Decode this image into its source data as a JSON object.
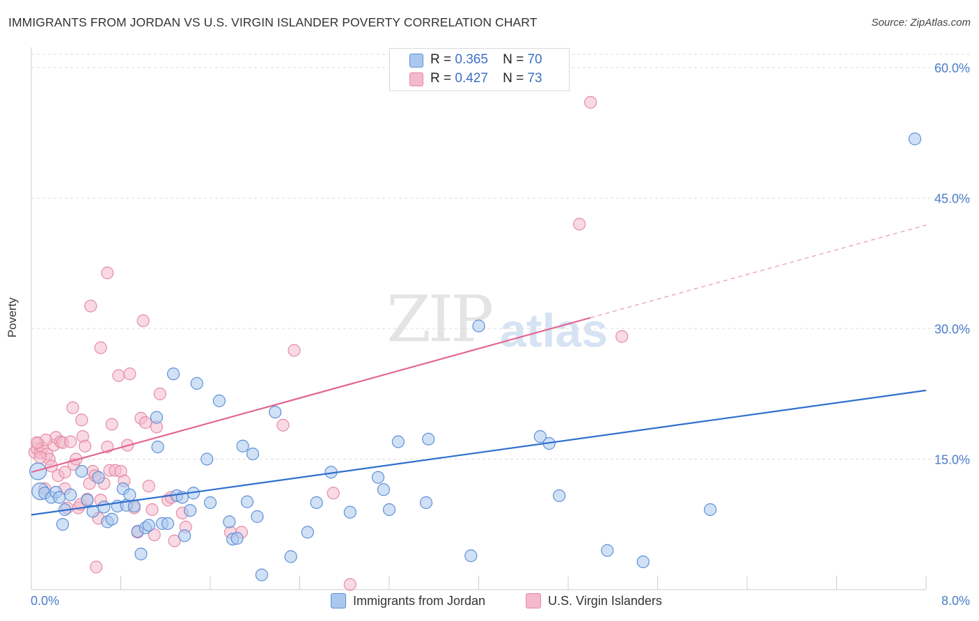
{
  "title": "IMMIGRANTS FROM JORDAN VS U.S. VIRGIN ISLANDER POVERTY CORRELATION CHART",
  "source": "Source: ZipAtlas.com",
  "watermark": {
    "zip": "ZIP",
    "atlas": "atlas"
  },
  "legend": {
    "r_label": "R =",
    "n_label": "N =",
    "series": [
      {
        "r": "0.365",
        "n": "70"
      },
      {
        "r": "0.427",
        "n": "73"
      }
    ]
  },
  "colors": {
    "jordan_fill": "#aac8ee",
    "jordan_stroke": "#5d8fd6",
    "jordan_line": "#2e6fce",
    "vi_fill": "#f4b9cb",
    "vi_stroke": "#e58aa9",
    "vi_line": "#e2668f",
    "grid": "#dddddd",
    "axis": "#cccccc",
    "tick_text": "#4a7cc9"
  },
  "chart_data": {
    "type": "scatter",
    "title": "IMMIGRANTS FROM JORDAN VS U.S. VIRGIN ISLANDER POVERTY CORRELATION CHART",
    "xlabel": "",
    "ylabel": "Poverty",
    "xlim": [
      0,
      8
    ],
    "ylim": [
      0,
      60
    ],
    "x_tick_labels": [
      "0.0%",
      "8.0%"
    ],
    "y_ticks": [
      15,
      30,
      45,
      60
    ],
    "y_tick_labels": [
      "15.0%",
      "30.0%",
      "45.0%",
      "60.0%"
    ],
    "grid": true,
    "legend_position": "top-center",
    "series": [
      {
        "name": "Immigrants from Jordan",
        "r": 0.365,
        "n": 70,
        "trend": {
          "x": [
            0,
            8
          ],
          "y": [
            8.6,
            22.9
          ],
          "dashed_from": null
        },
        "points": [
          {
            "x": 0.06,
            "y": 13.6,
            "big": true
          },
          {
            "x": 0.08,
            "y": 11.3,
            "big": true
          },
          {
            "x": 0.12,
            "y": 11.1
          },
          {
            "x": 0.18,
            "y": 10.6
          },
          {
            "x": 0.22,
            "y": 11.2
          },
          {
            "x": 0.25,
            "y": 10.6
          },
          {
            "x": 0.28,
            "y": 7.5
          },
          {
            "x": 0.3,
            "y": 9.2
          },
          {
            "x": 0.35,
            "y": 10.9
          },
          {
            "x": 0.45,
            "y": 13.6
          },
          {
            "x": 0.5,
            "y": 10.3
          },
          {
            "x": 0.55,
            "y": 9.0
          },
          {
            "x": 0.6,
            "y": 12.9
          },
          {
            "x": 0.65,
            "y": 9.5
          },
          {
            "x": 0.68,
            "y": 7.8
          },
          {
            "x": 0.72,
            "y": 8.1
          },
          {
            "x": 0.77,
            "y": 9.6
          },
          {
            "x": 0.82,
            "y": 11.6
          },
          {
            "x": 0.85,
            "y": 9.7
          },
          {
            "x": 0.88,
            "y": 10.9
          },
          {
            "x": 0.92,
            "y": 9.6
          },
          {
            "x": 0.95,
            "y": 6.7
          },
          {
            "x": 0.98,
            "y": 4.1
          },
          {
            "x": 1.02,
            "y": 7.1
          },
          {
            "x": 1.05,
            "y": 7.4
          },
          {
            "x": 1.12,
            "y": 19.8
          },
          {
            "x": 1.13,
            "y": 16.4
          },
          {
            "x": 1.17,
            "y": 7.6
          },
          {
            "x": 1.22,
            "y": 7.6
          },
          {
            "x": 1.27,
            "y": 24.8
          },
          {
            "x": 1.3,
            "y": 10.8
          },
          {
            "x": 1.35,
            "y": 10.6
          },
          {
            "x": 1.37,
            "y": 6.2
          },
          {
            "x": 1.42,
            "y": 9.1
          },
          {
            "x": 1.45,
            "y": 11.1
          },
          {
            "x": 1.48,
            "y": 23.7
          },
          {
            "x": 1.57,
            "y": 15.0
          },
          {
            "x": 1.6,
            "y": 10.0
          },
          {
            "x": 1.68,
            "y": 21.7
          },
          {
            "x": 1.77,
            "y": 7.8
          },
          {
            "x": 1.8,
            "y": 5.8
          },
          {
            "x": 1.84,
            "y": 5.9
          },
          {
            "x": 1.89,
            "y": 16.5
          },
          {
            "x": 1.93,
            "y": 10.1
          },
          {
            "x": 1.98,
            "y": 15.6
          },
          {
            "x": 2.02,
            "y": 8.4
          },
          {
            "x": 2.06,
            "y": 1.7
          },
          {
            "x": 2.18,
            "y": 20.4
          },
          {
            "x": 2.32,
            "y": 3.8
          },
          {
            "x": 2.47,
            "y": 6.6
          },
          {
            "x": 2.55,
            "y": 10.0
          },
          {
            "x": 2.68,
            "y": 13.5
          },
          {
            "x": 2.85,
            "y": 8.9
          },
          {
            "x": 3.1,
            "y": 12.9
          },
          {
            "x": 3.15,
            "y": 11.5
          },
          {
            "x": 3.2,
            "y": 9.2
          },
          {
            "x": 3.28,
            "y": 17.0
          },
          {
            "x": 3.53,
            "y": 10.0
          },
          {
            "x": 3.55,
            "y": 17.3
          },
          {
            "x": 3.93,
            "y": 3.9
          },
          {
            "x": 4.0,
            "y": 30.3
          },
          {
            "x": 4.55,
            "y": 17.6
          },
          {
            "x": 4.63,
            "y": 16.8
          },
          {
            "x": 4.72,
            "y": 10.8
          },
          {
            "x": 5.15,
            "y": 4.5
          },
          {
            "x": 5.47,
            "y": 3.2
          },
          {
            "x": 6.07,
            "y": 9.2
          },
          {
            "x": 7.9,
            "y": 51.8
          }
        ]
      },
      {
        "name": "U.S. Virgin Islanders",
        "r": 0.427,
        "n": 73,
        "trend": {
          "x": [
            0,
            8
          ],
          "y": [
            13.5,
            41.9
          ],
          "dashed_from": 5.0
        },
        "points": [
          {
            "x": 0.03,
            "y": 15.8
          },
          {
            "x": 0.05,
            "y": 16.2
          },
          {
            "x": 0.06,
            "y": 16.8
          },
          {
            "x": 0.08,
            "y": 15.7
          },
          {
            "x": 0.1,
            "y": 16.3
          },
          {
            "x": 0.12,
            "y": 11.6
          },
          {
            "x": 0.14,
            "y": 15.6
          },
          {
            "x": 0.16,
            "y": 15.0
          },
          {
            "x": 0.18,
            "y": 14.2
          },
          {
            "x": 0.2,
            "y": 16.6
          },
          {
            "x": 0.22,
            "y": 17.5
          },
          {
            "x": 0.24,
            "y": 13.1
          },
          {
            "x": 0.26,
            "y": 17.0
          },
          {
            "x": 0.28,
            "y": 16.9
          },
          {
            "x": 0.3,
            "y": 11.6
          },
          {
            "x": 0.32,
            "y": 9.4
          },
          {
            "x": 0.35,
            "y": 17.0
          },
          {
            "x": 0.38,
            "y": 14.4
          },
          {
            "x": 0.4,
            "y": 15.0
          },
          {
            "x": 0.42,
            "y": 9.4
          },
          {
            "x": 0.44,
            "y": 9.8
          },
          {
            "x": 0.46,
            "y": 17.6
          },
          {
            "x": 0.48,
            "y": 16.5
          },
          {
            "x": 0.5,
            "y": 10.4
          },
          {
            "x": 0.52,
            "y": 12.2
          },
          {
            "x": 0.55,
            "y": 13.6
          },
          {
            "x": 0.57,
            "y": 13.1
          },
          {
            "x": 0.6,
            "y": 8.2
          },
          {
            "x": 0.62,
            "y": 10.3
          },
          {
            "x": 0.65,
            "y": 12.2
          },
          {
            "x": 0.68,
            "y": 16.4
          },
          {
            "x": 0.7,
            "y": 13.7
          },
          {
            "x": 0.72,
            "y": 19.0
          },
          {
            "x": 0.75,
            "y": 13.7
          },
          {
            "x": 0.78,
            "y": 24.6
          },
          {
            "x": 0.8,
            "y": 13.6
          },
          {
            "x": 0.83,
            "y": 12.5
          },
          {
            "x": 0.86,
            "y": 16.6
          },
          {
            "x": 0.88,
            "y": 24.8
          },
          {
            "x": 0.92,
            "y": 9.4
          },
          {
            "x": 0.95,
            "y": 6.6
          },
          {
            "x": 0.98,
            "y": 19.7
          },
          {
            "x": 1.02,
            "y": 19.2
          },
          {
            "x": 1.05,
            "y": 11.9
          },
          {
            "x": 1.08,
            "y": 9.2
          },
          {
            "x": 1.1,
            "y": 6.3
          },
          {
            "x": 1.12,
            "y": 18.7
          },
          {
            "x": 1.15,
            "y": 22.5
          },
          {
            "x": 1.22,
            "y": 10.3
          },
          {
            "x": 1.25,
            "y": 10.6
          },
          {
            "x": 1.28,
            "y": 5.6
          },
          {
            "x": 1.35,
            "y": 8.8
          },
          {
            "x": 1.38,
            "y": 7.2
          },
          {
            "x": 1.78,
            "y": 6.6
          },
          {
            "x": 1.88,
            "y": 6.6
          },
          {
            "x": 2.25,
            "y": 18.9
          },
          {
            "x": 2.35,
            "y": 27.5
          },
          {
            "x": 2.7,
            "y": 11.1
          },
          {
            "x": 2.85,
            "y": 0.6
          },
          {
            "x": 0.37,
            "y": 20.9
          },
          {
            "x": 0.45,
            "y": 19.5
          },
          {
            "x": 0.53,
            "y": 32.6
          },
          {
            "x": 0.62,
            "y": 27.8
          },
          {
            "x": 0.68,
            "y": 36.4
          },
          {
            "x": 1.0,
            "y": 30.9
          },
          {
            "x": 0.58,
            "y": 2.6
          },
          {
            "x": 0.13,
            "y": 17.2
          },
          {
            "x": 0.05,
            "y": 16.9
          },
          {
            "x": 0.08,
            "y": 15.2
          },
          {
            "x": 0.3,
            "y": 13.5
          },
          {
            "x": 4.9,
            "y": 42.0
          },
          {
            "x": 5.28,
            "y": 29.1
          },
          {
            "x": 5.0,
            "y": 56.0
          }
        ]
      }
    ]
  },
  "bottom_legend": {
    "items": [
      {
        "label": "Immigrants from Jordan"
      },
      {
        "label": "U.S. Virgin Islanders"
      }
    ]
  }
}
